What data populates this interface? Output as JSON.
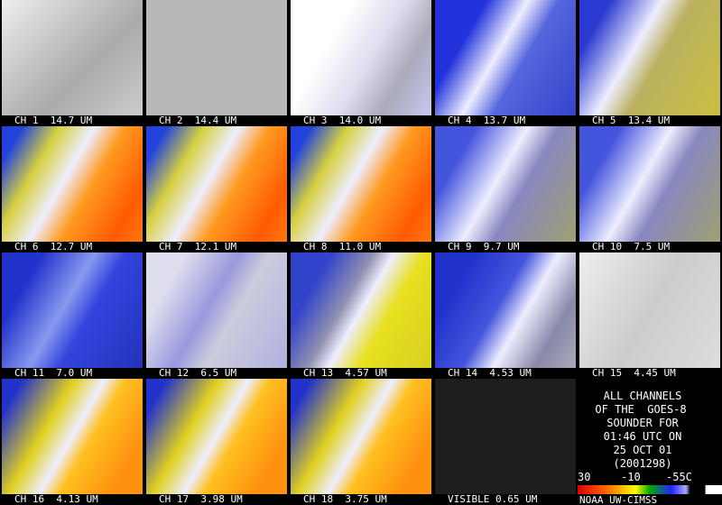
{
  "panels": [
    {
      "label": "CH 1  14.7 UM"
    },
    {
      "label": "CH 2  14.4 UM"
    },
    {
      "label": "CH 3  14.0 UM"
    },
    {
      "label": "CH 4  13.7 UM"
    },
    {
      "label": "CH 5  13.4 UM"
    },
    {
      "label": "CH 6  12.7 UM"
    },
    {
      "label": "CH 7  12.1 UM"
    },
    {
      "label": "CH 8  11.0 UM"
    },
    {
      "label": "CH 9  9.7 UM"
    },
    {
      "label": "CH 10  7.5 UM"
    },
    {
      "label": "CH 11  7.0 UM"
    },
    {
      "label": "CH 12  6.5 UM"
    },
    {
      "label": "CH 13  4.57 UM"
    },
    {
      "label": "CH 14  4.53 UM"
    },
    {
      "label": "CH 15  4.45 UM"
    },
    {
      "label": "CH 16  4.13 UM"
    },
    {
      "label": "CH 17  3.98 UM"
    },
    {
      "label": "CH 18  3.75 UM"
    },
    {
      "label": "VISIBLE 0.65 UM"
    }
  ],
  "legend": {
    "lines": [
      "ALL CHANNELS",
      "OF THE  GOES-8",
      "SOUNDER FOR",
      "01:46 UTC ON",
      "25 OCT 01",
      "(2001298)"
    ],
    "scale_labels": [
      "30",
      "-10",
      "-55C"
    ],
    "credit": "NOAA UW-CIMSS"
  }
}
